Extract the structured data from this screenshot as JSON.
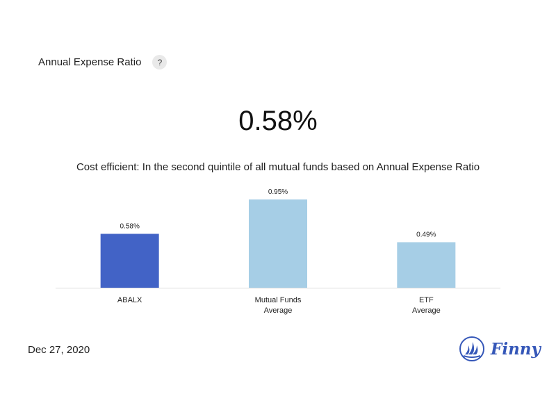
{
  "header": {
    "title": "Annual Expense Ratio",
    "help_label": "?"
  },
  "metric": {
    "value": "0.58%",
    "subtitle": "Cost efficient: In the second quintile of all mutual funds based on Annual Expense Ratio"
  },
  "colors": {
    "highlight": "#4263c6",
    "comparison": "#a6cee6",
    "axis": "#dddddd",
    "brand": "#3557b8"
  },
  "chart_data": {
    "type": "bar",
    "categories": [
      [
        "ABALX"
      ],
      [
        "Mutual Funds",
        "Average"
      ],
      [
        "ETF",
        "Average"
      ]
    ],
    "values": [
      0.58,
      0.95,
      0.49
    ],
    "value_labels": [
      "0.58%",
      "0.95%",
      "0.49%"
    ],
    "highlight_index": 0,
    "ylim": [
      0,
      0.95
    ],
    "grid": false,
    "title": "",
    "xlabel": "",
    "ylabel": ""
  },
  "footer": {
    "date": "Dec 27, 2020",
    "brand_name": "Finny",
    "brand_icon": "sailboat-icon"
  }
}
